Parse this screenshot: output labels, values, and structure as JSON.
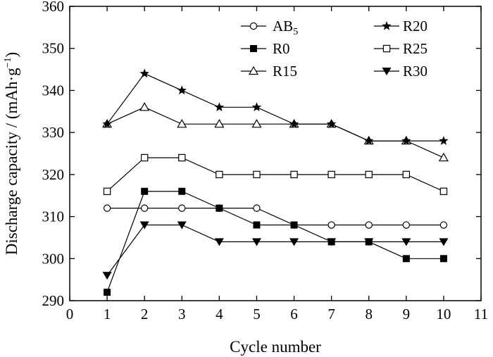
{
  "chart_data": {
    "type": "line",
    "title": "",
    "xlabel": "Cycle number",
    "ylabel": "Discharge capacity / (mAh·g",
    "ylabel_sup": "−1",
    "ylabel_close": ")",
    "xlim": [
      0,
      11
    ],
    "ylim": [
      290,
      360
    ],
    "xticks": [
      0,
      1,
      2,
      3,
      4,
      5,
      6,
      7,
      8,
      9,
      10,
      11
    ],
    "yticks": [
      290,
      300,
      310,
      320,
      330,
      340,
      350,
      360
    ],
    "grid": false,
    "legend_position": "top-right",
    "x": [
      1,
      2,
      3,
      4,
      5,
      6,
      7,
      8,
      9,
      10
    ],
    "series": [
      {
        "name": "AB",
        "name_sub": "5",
        "marker": "open-circle",
        "values": [
          312,
          312,
          312,
          312,
          312,
          308,
          308,
          308,
          308,
          308
        ]
      },
      {
        "name": "R0",
        "marker": "filled-square",
        "values": [
          292,
          316,
          316,
          312,
          308,
          308,
          304,
          304,
          300,
          300
        ]
      },
      {
        "name": "R15",
        "marker": "open-triangle-up",
        "values": [
          332,
          336,
          332,
          332,
          332,
          332,
          332,
          328,
          328,
          324
        ]
      },
      {
        "name": "R20",
        "marker": "filled-star",
        "values": [
          332,
          344,
          340,
          336,
          336,
          332,
          332,
          328,
          328,
          328
        ]
      },
      {
        "name": "R25",
        "marker": "open-square",
        "values": [
          316,
          324,
          324,
          320,
          320,
          320,
          320,
          320,
          320,
          316
        ]
      },
      {
        "name": "R30",
        "marker": "filled-triangle-down",
        "values": [
          296,
          308,
          308,
          304,
          304,
          304,
          304,
          304,
          304,
          304
        ]
      }
    ]
  }
}
